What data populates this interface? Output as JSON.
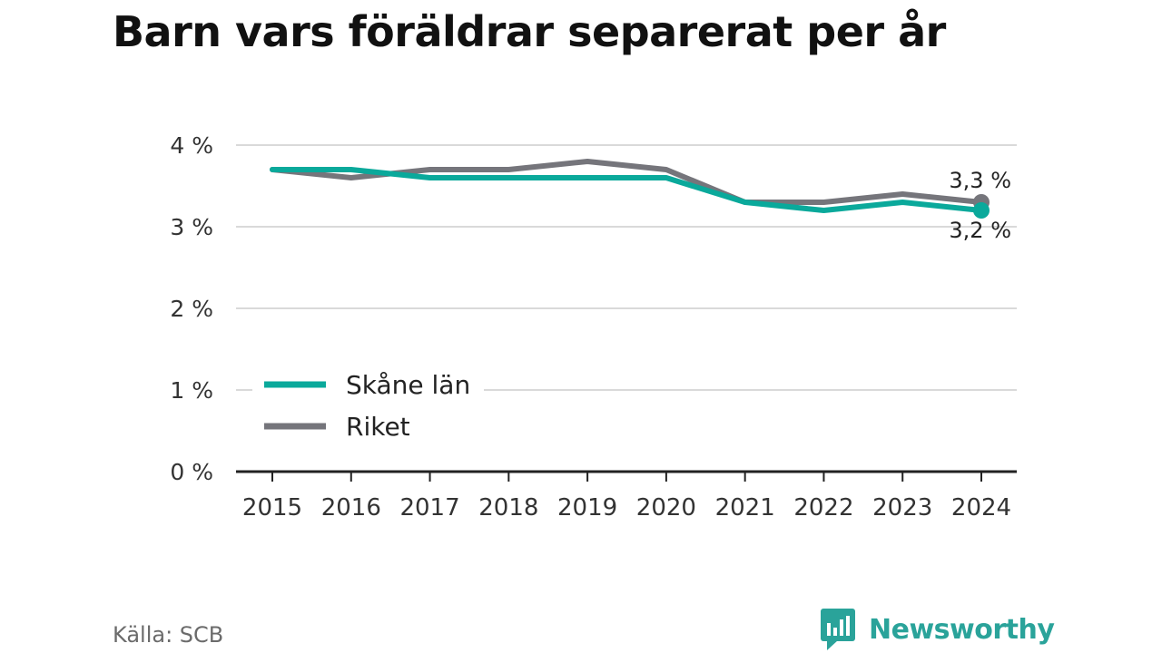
{
  "title": "Barn vars föräldrar separerat per år",
  "source": "Källa: SCB",
  "brand": {
    "name": "Newsworthy",
    "icon": "bar-chart-speech-bubble-icon"
  },
  "colors": {
    "skane": "#0aa99b",
    "riket": "#75757b",
    "grid": "#d9d9d9",
    "axis": "#222222",
    "text": "#333333"
  },
  "chart_data": {
    "type": "line",
    "x": [
      "2015",
      "2016",
      "2017",
      "2018",
      "2019",
      "2020",
      "2021",
      "2022",
      "2023",
      "2024"
    ],
    "series": [
      {
        "name": "Skåne län",
        "values": [
          3.7,
          3.7,
          3.6,
          3.6,
          3.6,
          3.6,
          3.3,
          3.2,
          3.3,
          3.2
        ],
        "end_label": "3,2 %"
      },
      {
        "name": "Riket",
        "values": [
          3.7,
          3.6,
          3.7,
          3.7,
          3.8,
          3.7,
          3.3,
          3.3,
          3.4,
          3.3
        ],
        "end_label": "3,3 %"
      }
    ],
    "yticks": [
      "0 %",
      "1 %",
      "2 %",
      "3 %",
      "4 %"
    ],
    "ylim": [
      0,
      4
    ],
    "grid": true,
    "legend": "bottom-left"
  }
}
